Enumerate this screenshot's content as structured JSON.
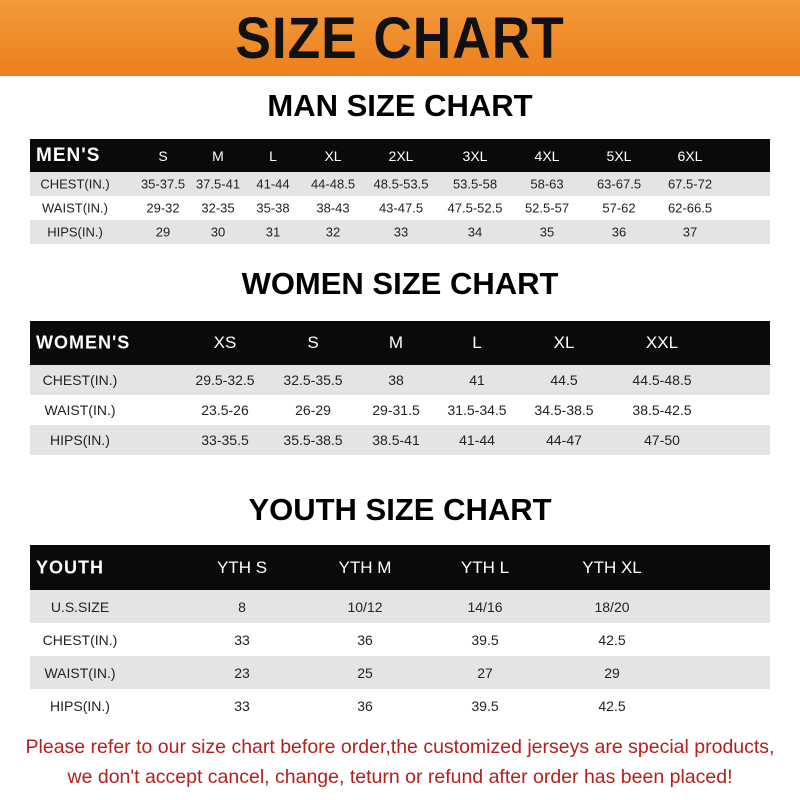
{
  "banner": {
    "title": "SIZE CHART",
    "color": "#ee8a26"
  },
  "men": {
    "title": "MAN SIZE CHART",
    "header": [
      "MEN'S",
      "S",
      "M",
      "L",
      "XL",
      "2XL",
      "3XL",
      "4XL",
      "5XL",
      "6XL"
    ],
    "rows": [
      [
        "CHEST(IN.)",
        "35-37.5",
        "37.5-41",
        "41-44",
        "44-48.5",
        "48.5-53.5",
        "53.5-58",
        "58-63",
        "63-67.5",
        "67.5-72"
      ],
      [
        "WAIST(IN.)",
        "29-32",
        "32-35",
        "35-38",
        "38-43",
        "43-47.5",
        "47.5-52.5",
        "52.5-57",
        "57-62",
        "62-66.5"
      ],
      [
        "HIPS(IN.)",
        "29",
        "30",
        "31",
        "32",
        "33",
        "34",
        "35",
        "36",
        "37"
      ]
    ]
  },
  "women": {
    "title": "WOMEN SIZE CHART",
    "header": [
      "WOMEN'S",
      "XS",
      "S",
      "M",
      "L",
      "XL",
      "XXL"
    ],
    "rows": [
      [
        "CHEST(IN.)",
        "29.5-32.5",
        "32.5-35.5",
        "38",
        "41",
        "44.5",
        "44.5-48.5"
      ],
      [
        "WAIST(IN.)",
        "23.5-26",
        "26-29",
        "29-31.5",
        "31.5-34.5",
        "34.5-38.5",
        "38.5-42.5"
      ],
      [
        "HIPS(IN.)",
        "33-35.5",
        "35.5-38.5",
        "38.5-41",
        "41-44",
        "44-47",
        "47-50"
      ]
    ]
  },
  "youth": {
    "title": "YOUTH SIZE CHART",
    "header": [
      "YOUTH",
      "YTH S",
      "YTH M",
      "YTH L",
      "YTH XL"
    ],
    "rows": [
      [
        "U.S.SIZE",
        "8",
        "10/12",
        "14/16",
        "18/20"
      ],
      [
        "CHEST(IN.)",
        "33",
        "36",
        "39.5",
        "42.5"
      ],
      [
        "WAIST(IN.)",
        "23",
        "25",
        "27",
        "29"
      ],
      [
        "HIPS(IN.)",
        "33",
        "36",
        "39.5",
        "42.5"
      ]
    ]
  },
  "footer": {
    "line1": "Please refer to our size chart before order,the customized jerseys are special products,",
    "line2": "we don't accept cancel, change, teturn or refund after order has been placed!",
    "color": "#b3201e"
  }
}
